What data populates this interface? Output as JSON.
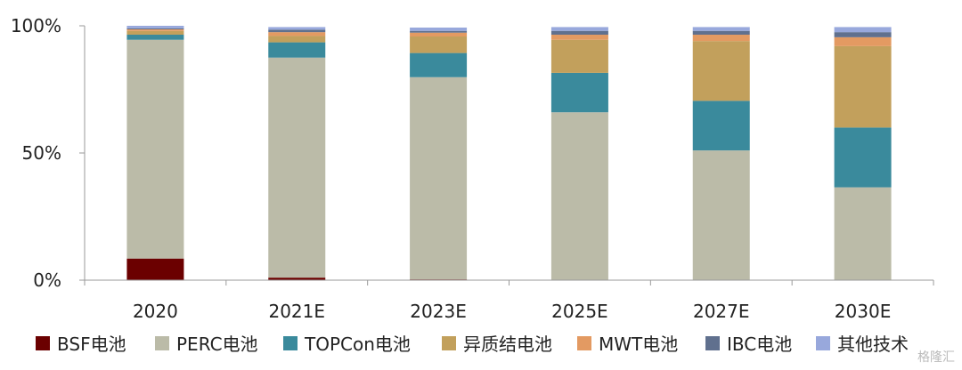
{
  "chart_data": {
    "type": "bar",
    "stacked": true,
    "categories": [
      "2020",
      "2021E",
      "2023E",
      "2025E",
      "2027E",
      "2030E"
    ],
    "ylim": [
      0,
      100
    ],
    "yticks": [
      {
        "value": 0,
        "label": "0%"
      },
      {
        "value": 50,
        "label": "50%"
      },
      {
        "value": 100,
        "label": "100%"
      }
    ],
    "series": [
      {
        "name": "BSF电池",
        "color": "#6b0000",
        "values": [
          8.5,
          1.0,
          0.3,
          0,
          0,
          0
        ]
      },
      {
        "name": "PERC电池",
        "color": "#bbbba8",
        "values": [
          86.0,
          86.5,
          79.5,
          66.0,
          51.0,
          36.5
        ]
      },
      {
        "name": "TOPCon电池",
        "color": "#3a8a9c",
        "values": [
          2.0,
          6.0,
          9.5,
          15.5,
          19.5,
          23.5
        ]
      },
      {
        "name": "异质结电池",
        "color": "#c2a05c",
        "values": [
          1.5,
          2.5,
          6.5,
          13.0,
          23.5,
          32.0
        ]
      },
      {
        "name": "MWT电池",
        "color": "#e39a62",
        "values": [
          0.6,
          1.5,
          1.5,
          2.0,
          2.5,
          3.5
        ]
      },
      {
        "name": "IBC电池",
        "color": "#60708e",
        "values": [
          0.4,
          1.0,
          0.7,
          1.5,
          1.5,
          2.0
        ]
      },
      {
        "name": "其他技术",
        "color": "#98a8dc",
        "values": [
          1.0,
          1.0,
          1.3,
          1.5,
          1.5,
          2.0
        ]
      }
    ],
    "xlabel": "",
    "ylabel": "",
    "grid": false,
    "legend": "bottom"
  },
  "watermark": "格隆汇"
}
